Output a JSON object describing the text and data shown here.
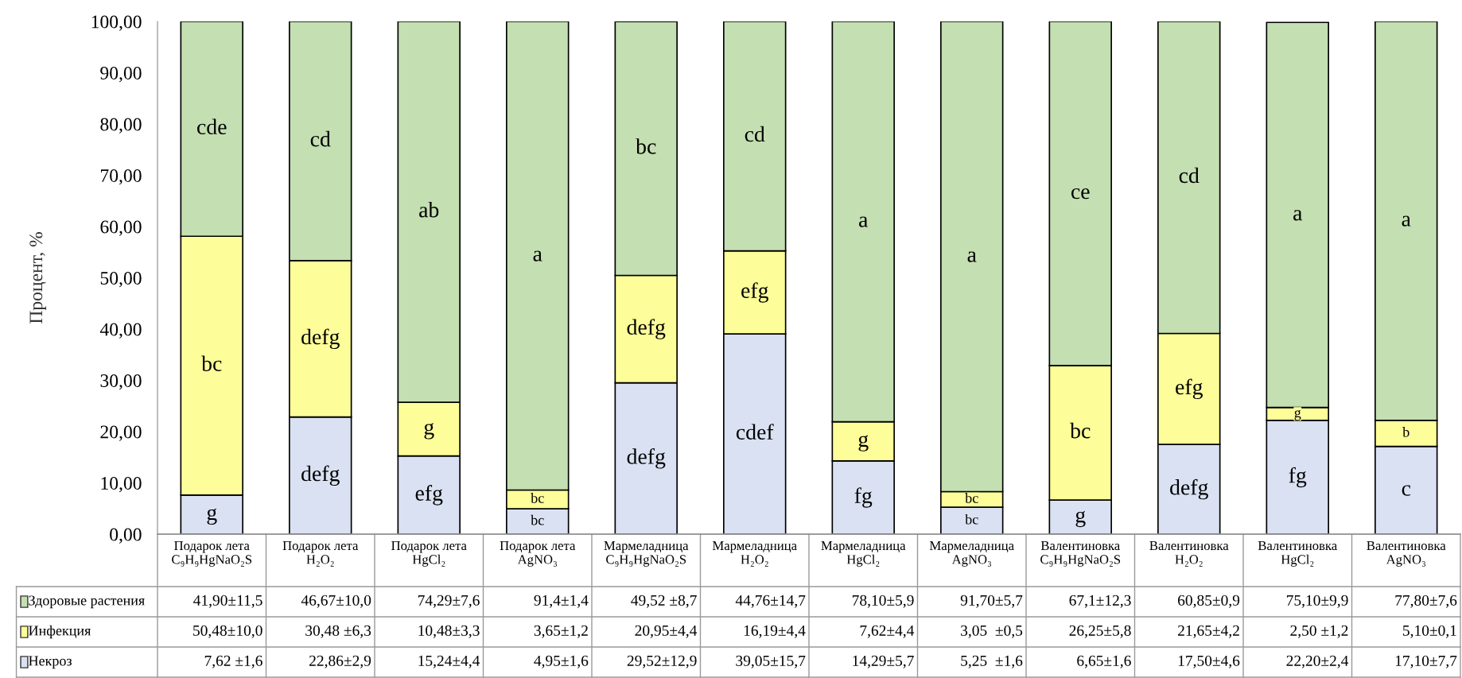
{
  "chart_data": {
    "type": "bar",
    "stacked": true,
    "ylabel": "Процент, %",
    "legend": "bottom",
    "grid": false,
    "categories": [
      "Подарок лета\nC₉H₉HgNaO₂S",
      "Подарок лета\nH₂O₂",
      "Подарок лета\nHgCl₂",
      "Подарок лета\nAgNO₃",
      "Мармеладница\nC₉H₉HgNaO₂S",
      "Мармеладница\nH₂O₂",
      "Мармеладница\nHgCl₂",
      "Мармеладница\nAgNO₃",
      "Валентиновка\nC₉H₉HgNaO₂S",
      "Валентиновка\nH₂O₂",
      "Валентиновка\nHgCl₂",
      "Валентиновка\nAgNO₃"
    ],
    "ylim": [
      0,
      100
    ],
    "yticks": [
      {
        "value": 0,
        "label": "0,00"
      },
      {
        "value": 10,
        "label": "10,00"
      },
      {
        "value": 20,
        "label": "20,00"
      },
      {
        "value": 30,
        "label": "30,00"
      },
      {
        "value": 40,
        "label": "40,00"
      },
      {
        "value": 50,
        "label": "50,00"
      },
      {
        "value": 60,
        "label": "60,00"
      },
      {
        "value": 70,
        "label": "70,00"
      },
      {
        "value": 80,
        "label": "80,00"
      },
      {
        "value": 90,
        "label": "90,00"
      },
      {
        "value": 100,
        "label": "100,00"
      }
    ],
    "series": [
      {
        "name": "Некроз",
        "color": "#d9e1f2",
        "values": [
          7.62,
          22.86,
          15.24,
          4.95,
          29.52,
          39.05,
          14.29,
          5.25,
          6.65,
          17.5,
          22.2,
          17.1
        ],
        "value_labels": [
          "7,62 ±1,6",
          "22,86±2,9",
          "15,24±4,4",
          "4,95±1,6",
          "29,52±12,9",
          "39,05±15,7",
          "14,29±5,7",
          "5,25  ±1,6",
          "6,65±1,6",
          "17,50±4,6",
          "22,20±2,4",
          "17,10±7,7"
        ]
      },
      {
        "name": "Инфекция",
        "color": "#fdfd99",
        "values": [
          50.48,
          30.48,
          10.48,
          3.65,
          20.95,
          16.19,
          7.62,
          3.05,
          26.25,
          21.65,
          2.5,
          5.1
        ],
        "value_labels": [
          "50,48±10,0",
          "30,48 ±6,3",
          "10,48±3,3",
          "3,65±1,2",
          "20,95±4,4",
          "16,19±4,4",
          "7,62±4,4",
          "3,05  ±0,5",
          "26,25±5,8",
          "21,65±4,2",
          "2,50 ±1,2",
          "5,10±0,1"
        ]
      },
      {
        "name": "Здоровые растения",
        "color": "#c4dfb2",
        "values": [
          41.9,
          46.67,
          74.29,
          91.4,
          49.52,
          44.76,
          78.1,
          91.7,
          67.1,
          60.85,
          75.1,
          77.8
        ],
        "value_labels": [
          "41,90±11,5",
          "46,67±10,0",
          "74,29±7,6",
          "91,4±1,4",
          "49,52 ±8,7",
          "44,76±14,7",
          "78,10±5,9",
          "91,70±5,7",
          "67,1±12,3",
          "60,85±0,9",
          "75,10±9,9",
          "77,80±7,6"
        ]
      }
    ],
    "annotations": [
      "cde",
      "bc",
      "g",
      "cd",
      "defg",
      "defg",
      "ab",
      "g",
      "efg",
      "a",
      "bc",
      "bc",
      "bc",
      "defg",
      "defg",
      "cd",
      "efg",
      "cdef",
      "a",
      "g",
      "fg",
      "a",
      "bc",
      "bc",
      "ce",
      "bc",
      "g",
      "cd",
      "efg",
      "defg",
      "a",
      "g",
      "fg",
      "a",
      "b",
      "c"
    ]
  }
}
